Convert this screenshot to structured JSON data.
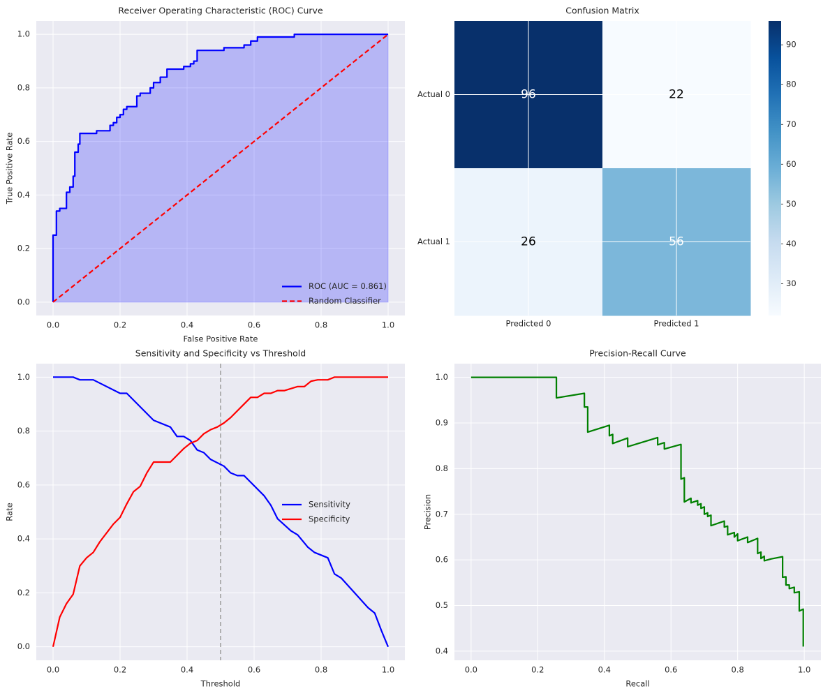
{
  "chart_data": [
    {
      "type": "line",
      "title": "Receiver Operating Characteristic (ROC) Curve",
      "xlabel": "False Positive Rate",
      "ylabel": "True Positive Rate",
      "xlim": [
        -0.05,
        1.05
      ],
      "ylim": [
        -0.05,
        1.05
      ],
      "xticks": [
        {
          "value": 0,
          "label": "0.0"
        },
        0.2,
        0.4,
        0.6,
        0.8,
        {
          "value": 1,
          "label": "1.0"
        }
      ],
      "yticks": [
        {
          "value": 0,
          "label": "0.0"
        },
        0.2,
        0.4,
        0.6,
        0.8,
        {
          "value": 1,
          "label": "1.0"
        }
      ],
      "grid": true,
      "legend": "lower right",
      "series": [
        {
          "name": "ROC (AUC = 0.861)",
          "color": "#0000ff",
          "fill": true,
          "linestyle": "solid",
          "x": [
            0,
            0,
            0.01,
            0.01,
            0.02,
            0.02,
            0.04,
            0.04,
            0.05,
            0.05,
            0.06,
            0.06,
            0.065,
            0.065,
            0.075,
            0.075,
            0.08,
            0.08,
            0.13,
            0.13,
            0.17,
            0.17,
            0.18,
            0.18,
            0.19,
            0.19,
            0.2,
            0.2,
            0.21,
            0.21,
            0.22,
            0.22,
            0.25,
            0.25,
            0.26,
            0.26,
            0.29,
            0.29,
            0.3,
            0.3,
            0.32,
            0.32,
            0.34,
            0.34,
            0.39,
            0.39,
            0.41,
            0.41,
            0.42,
            0.42,
            0.43,
            0.43,
            0.51,
            0.51,
            0.57,
            0.57,
            0.59,
            0.59,
            0.61,
            0.61,
            0.72,
            0.72,
            1
          ],
          "values": [
            0,
            0.25,
            0.25,
            0.34,
            0.34,
            0.35,
            0.35,
            0.41,
            0.41,
            0.43,
            0.43,
            0.47,
            0.47,
            0.56,
            0.56,
            0.59,
            0.59,
            0.63,
            0.63,
            0.64,
            0.64,
            0.66,
            0.66,
            0.67,
            0.67,
            0.69,
            0.69,
            0.7,
            0.7,
            0.72,
            0.72,
            0.73,
            0.73,
            0.77,
            0.77,
            0.78,
            0.78,
            0.8,
            0.8,
            0.82,
            0.82,
            0.84,
            0.84,
            0.87,
            0.87,
            0.88,
            0.88,
            0.89,
            0.89,
            0.9,
            0.9,
            0.94,
            0.94,
            0.95,
            0.95,
            0.96,
            0.96,
            0.975,
            0.975,
            0.99,
            0.99,
            1,
            1
          ]
        },
        {
          "name": "Random Classifier",
          "color": "#ff0000",
          "linestyle": "dashed",
          "x": [
            0,
            1
          ],
          "values": [
            0,
            1
          ]
        }
      ]
    },
    {
      "type": "heatmap",
      "title": "Confusion Matrix",
      "x_categories": [
        "Predicted 0",
        "Predicted 1"
      ],
      "y_categories": [
        "Actual 0",
        "Actual 1"
      ],
      "values": [
        [
          96,
          22
        ],
        [
          26,
          56
        ]
      ],
      "cmap": "Blues",
      "clim": [
        22,
        96
      ],
      "cticks": [
        30,
        40,
        50,
        60,
        70,
        80,
        90
      ],
      "grid": true
    },
    {
      "type": "line",
      "title": "Sensitivity and Specificity vs Threshold",
      "xlabel": "Threshold",
      "ylabel": "Rate",
      "xlim": [
        -0.05,
        1.05
      ],
      "ylim": [
        -0.05,
        1.05
      ],
      "xticks": [
        {
          "value": 0,
          "label": "0.0"
        },
        0.2,
        0.4,
        0.6,
        0.8,
        {
          "value": 1,
          "label": "1.0"
        }
      ],
      "yticks": [
        {
          "value": 0,
          "label": "0.0"
        },
        0.2,
        0.4,
        0.6,
        0.8,
        {
          "value": 1,
          "label": "1.0"
        }
      ],
      "grid": true,
      "legend": "center right",
      "vline": 0.5,
      "series": [
        {
          "name": "Sensitivity",
          "color": "#0000ff",
          "linestyle": "solid",
          "x": [
            0,
            0.06,
            0.08,
            0.12,
            0.2,
            0.22,
            0.3,
            0.35,
            0.37,
            0.39,
            0.41,
            0.43,
            0.45,
            0.47,
            0.51,
            0.53,
            0.55,
            0.57,
            0.63,
            0.65,
            0.67,
            0.71,
            0.73,
            0.76,
            0.78,
            0.82,
            0.84,
            0.86,
            0.94,
            0.96,
            0.98,
            1
          ],
          "values": [
            1,
            1,
            0.99,
            0.99,
            0.94,
            0.94,
            0.84,
            0.815,
            0.78,
            0.78,
            0.765,
            0.73,
            0.72,
            0.695,
            0.67,
            0.645,
            0.635,
            0.635,
            0.56,
            0.525,
            0.475,
            0.43,
            0.415,
            0.37,
            0.35,
            0.33,
            0.27,
            0.255,
            0.145,
            0.125,
            0.06,
            0
          ]
        },
        {
          "name": "Specificity",
          "color": "#ff0000",
          "linestyle": "solid",
          "x": [
            0,
            0.02,
            0.04,
            0.06,
            0.08,
            0.1,
            0.12,
            0.14,
            0.18,
            0.2,
            0.22,
            0.24,
            0.26,
            0.28,
            0.3,
            0.35,
            0.39,
            0.41,
            0.43,
            0.45,
            0.47,
            0.49,
            0.51,
            0.53,
            0.57,
            0.59,
            0.61,
            0.63,
            0.65,
            0.67,
            0.69,
            0.73,
            0.75,
            0.77,
            0.79,
            0.82,
            0.84,
            1
          ],
          "values": [
            0,
            0.11,
            0.16,
            0.195,
            0.3,
            0.33,
            0.35,
            0.39,
            0.455,
            0.48,
            0.53,
            0.575,
            0.595,
            0.645,
            0.685,
            0.685,
            0.735,
            0.755,
            0.765,
            0.79,
            0.805,
            0.815,
            0.83,
            0.85,
            0.9,
            0.925,
            0.925,
            0.94,
            0.94,
            0.95,
            0.95,
            0.965,
            0.965,
            0.985,
            0.99,
            0.99,
            1,
            1
          ]
        }
      ]
    },
    {
      "type": "line",
      "title": "Precision-Recall Curve",
      "xlabel": "Recall",
      "ylabel": "Precision",
      "xlim": [
        -0.05,
        1.05
      ],
      "ylim": [
        0.38,
        1.03
      ],
      "xticks": [
        {
          "value": 0,
          "label": "0.0"
        },
        0.2,
        0.4,
        0.6,
        0.8,
        {
          "value": 1,
          "label": "1.0"
        }
      ],
      "yticks": [
        0.4,
        0.5,
        0.6,
        0.7,
        0.8,
        0.9,
        {
          "value": 1,
          "label": "1.0"
        }
      ],
      "grid": true,
      "series": [
        {
          "color": "#008000",
          "linestyle": "solid",
          "x": [
            0,
            0.256,
            0.256,
            0.34,
            0.34,
            0.35,
            0.35,
            0.415,
            0.415,
            0.425,
            0.425,
            0.47,
            0.47,
            0.56,
            0.56,
            0.58,
            0.58,
            0.63,
            0.63,
            0.64,
            0.64,
            0.66,
            0.66,
            0.68,
            0.68,
            0.69,
            0.69,
            0.7,
            0.7,
            0.71,
            0.71,
            0.72,
            0.72,
            0.76,
            0.76,
            0.77,
            0.77,
            0.79,
            0.79,
            0.8,
            0.8,
            0.83,
            0.83,
            0.86,
            0.86,
            0.87,
            0.87,
            0.88,
            0.88,
            0.9,
            0.935,
            0.935,
            0.945,
            0.945,
            0.955,
            0.955,
            0.97,
            0.97,
            0.985,
            0.985,
            0.997,
            0.997
          ],
          "values": [
            1,
            1,
            0.955,
            0.965,
            0.935,
            0.935,
            0.88,
            0.895,
            0.872,
            0.875,
            0.855,
            0.867,
            0.848,
            0.868,
            0.852,
            0.857,
            0.843,
            0.853,
            0.777,
            0.78,
            0.727,
            0.735,
            0.725,
            0.73,
            0.72,
            0.723,
            0.713,
            0.716,
            0.7,
            0.703,
            0.695,
            0.698,
            0.675,
            0.685,
            0.672,
            0.674,
            0.655,
            0.66,
            0.65,
            0.657,
            0.642,
            0.65,
            0.638,
            0.647,
            0.614,
            0.617,
            0.603,
            0.608,
            0.598,
            0.602,
            0.607,
            0.562,
            0.563,
            0.545,
            0.545,
            0.537,
            0.54,
            0.528,
            0.53,
            0.488,
            0.492,
            0.41
          ]
        }
      ]
    }
  ]
}
